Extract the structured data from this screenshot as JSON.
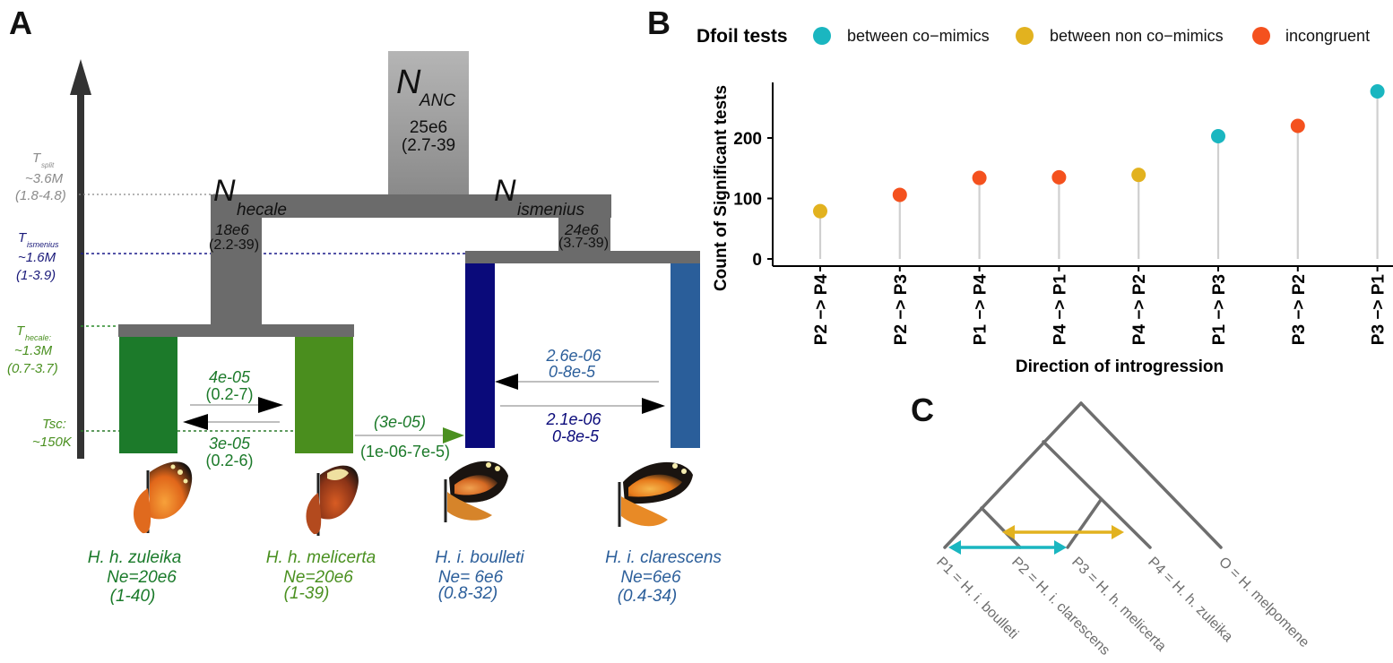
{
  "panels": {
    "a": "A",
    "b": "B",
    "c": "C"
  },
  "panel_a": {
    "anc": {
      "n": "N",
      "sub": "ANC",
      "value": "25e6",
      "range": "(2.7-39"
    },
    "hecale": {
      "n": "N",
      "sub": "hecale",
      "value": "18e6",
      "range": "(2.2-39)"
    },
    "ismenius": {
      "n": "N",
      "sub": "ismenius",
      "value": "24e6",
      "range": "(3.7-39)"
    },
    "times": {
      "split": {
        "t": "T",
        "sub": "split",
        "value": "~3.6M",
        "range": "(1.8-4.8)"
      },
      "ismenius": {
        "t": "T",
        "sub": "ismenius",
        "value": "~1.6M",
        "range": "(1-3.9)"
      },
      "hecale": {
        "t": "T",
        "sub": "hecale:",
        "value": "~1.3M",
        "range": "(0.7-3.7)"
      },
      "tsc": {
        "label": "Tsc:",
        "value": "~150K"
      }
    },
    "migration": {
      "zul_to_mel": {
        "value": "4e-05",
        "range": "(0.2-7)"
      },
      "mel_to_zul": {
        "value": "3e-05",
        "range": "(0.2-6)"
      },
      "mel_to_boul": {
        "value": "(3e-05)",
        "range": "(1e-06-7e-5)"
      },
      "clar_to_boul": {
        "value": "2.6e-06",
        "range": "0-8e-5"
      },
      "boul_to_clar": {
        "value": "2.1e-06",
        "range": "0-8e-5"
      }
    },
    "species": [
      {
        "name": "H. h. zuleika",
        "ne": "Ne=20e6",
        "range": "(1-40)",
        "color": "#1a7a2a"
      },
      {
        "name": "H. h. melicerta",
        "ne": "Ne=20e6",
        "range": "(1-39)",
        "color": "#4a9020"
      },
      {
        "name": "H. i. boulleti",
        "ne": "Ne= 6e6",
        "range": "(0.8-32)",
        "color": "#2b5e9a"
      },
      {
        "name": "H. i. clarescens",
        "ne": "Ne=6e6",
        "range": "(0.4-34)",
        "color": "#2b5e9a"
      }
    ]
  },
  "legend": {
    "title": "Dfoil tests",
    "items": [
      {
        "label": "between co−mimics",
        "color": "#1ab6c0"
      },
      {
        "label": "between non co−mimics",
        "color": "#e2b21f"
      },
      {
        "label": "incongruent",
        "color": "#f4511e"
      }
    ]
  },
  "chart_data": {
    "type": "lollipop",
    "xlabel": "Direction of introgression",
    "ylabel": "Count of Significant tests",
    "ylim": [
      0,
      285
    ],
    "yticks": [
      0,
      100,
      200
    ],
    "grid": false,
    "points": [
      {
        "x": "P2 −> P4",
        "y": 79,
        "group": "between non co−mimics",
        "color": "#e2b21f"
      },
      {
        "x": "P2 −> P3",
        "y": 106,
        "group": "incongruent",
        "color": "#f4511e"
      },
      {
        "x": "P1 −> P4",
        "y": 134,
        "group": "incongruent",
        "color": "#f4511e"
      },
      {
        "x": "P4 −> P1",
        "y": 135,
        "group": "incongruent",
        "color": "#f4511e"
      },
      {
        "x": "P4 −> P2",
        "y": 139,
        "group": "between non co−mimics",
        "color": "#e2b21f"
      },
      {
        "x": "P1 −> P3",
        "y": 203,
        "group": "between co−mimics",
        "color": "#1ab6c0"
      },
      {
        "x": "P3 −> P2",
        "y": 220,
        "group": "incongruent",
        "color": "#f4511e"
      },
      {
        "x": "P3 −> P1",
        "y": 277,
        "group": "between co−mimics",
        "color": "#1ab6c0"
      }
    ]
  },
  "panel_c": {
    "tips": [
      {
        "label": "P1 = H. i. boulleti"
      },
      {
        "label": "P2 = H. i. clarescens"
      },
      {
        "label": "P3 = H. h. melicerta"
      },
      {
        "label": "P4 = H. h. zuleika"
      },
      {
        "label": "O = H. melpomene"
      }
    ],
    "colors": {
      "co_mimic": "#1ab6c0",
      "non_co_mimic": "#e2b21f"
    }
  }
}
